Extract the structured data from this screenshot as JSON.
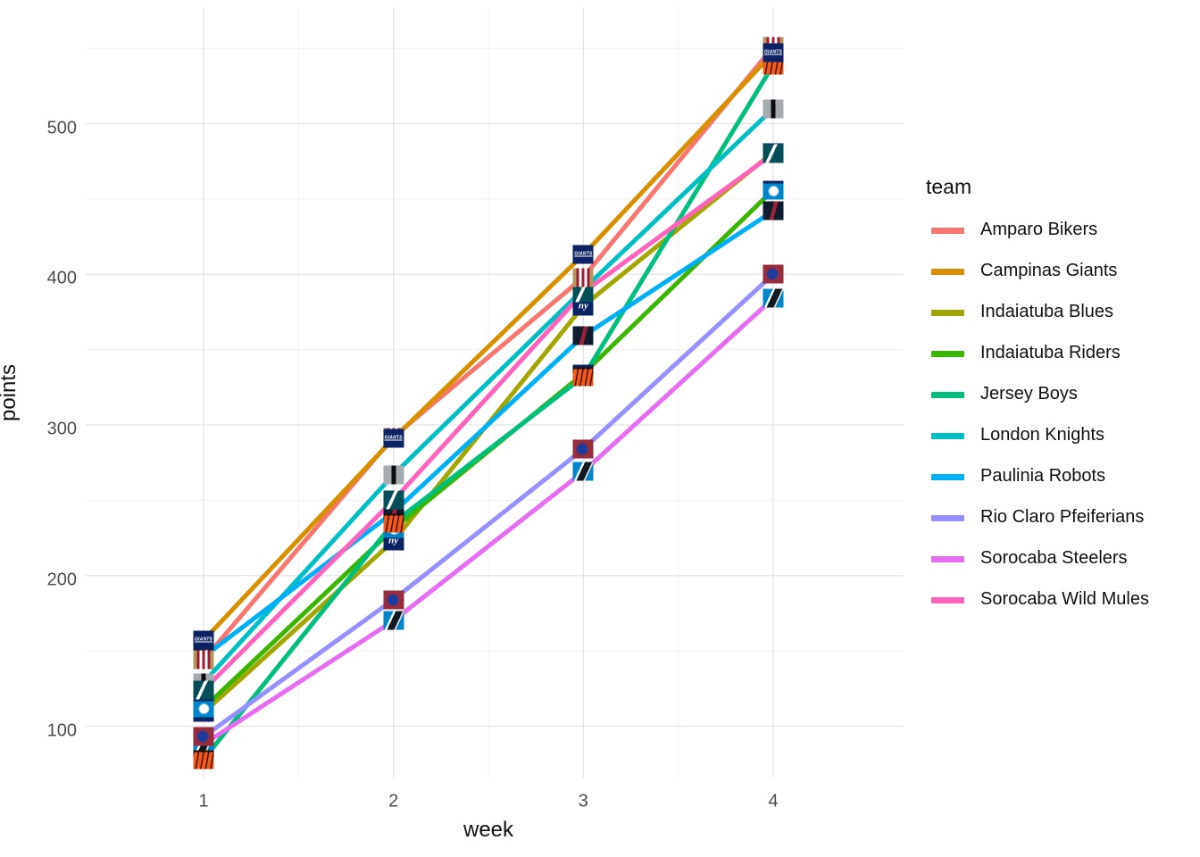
{
  "axes": {
    "x": {
      "title": "week",
      "tick_labels": [
        "1",
        "2",
        "3",
        "4"
      ],
      "tick_values": [
        1,
        2,
        3,
        4
      ],
      "minor_values": [
        1.5,
        2.5,
        3.5
      ]
    },
    "y": {
      "title": "points",
      "tick_labels": [
        "100",
        "200",
        "300",
        "400",
        "500"
      ],
      "tick_values": [
        100,
        200,
        300,
        400,
        500
      ],
      "minor_values": [
        150,
        250,
        350,
        450,
        550
      ]
    }
  },
  "legend": {
    "title": "team",
    "position": "right"
  },
  "grid": {
    "major_color": "#e4e4e4",
    "minor_color": "#f1f1f1",
    "background": "#ffffff"
  },
  "chart_data": {
    "type": "line",
    "title": "",
    "xlabel": "week",
    "ylabel": "points",
    "x": [
      1,
      2,
      3,
      4
    ],
    "xlim": [
      0.85,
      4.15
    ],
    "ylim": [
      66,
      576
    ],
    "grid": "on",
    "legend_position": "right",
    "marker_style": "team logo images at each data point",
    "series": [
      {
        "name": "Amparo Bikers",
        "slug": "amparo-bikers",
        "color": "#F8766D",
        "values": [
          144,
          292,
          398,
          551
        ],
        "logo_text": "",
        "logo_desc": "gold box with red and white vertical stripes"
      },
      {
        "name": "Campinas Giants",
        "slug": "campinas-giants",
        "color": "#D89000",
        "values": [
          157,
          291,
          413,
          547
        ],
        "logo_text": "GIANTS",
        "logo_desc": "navy box with white GIANTS wordmark"
      },
      {
        "name": "Indaiatuba Blues",
        "slug": "indaiatuba-blues",
        "color": "#A3A500",
        "values": [
          109,
          223,
          379,
          481
        ],
        "logo_text": "ny",
        "logo_desc": "navy box with white interlocking ny"
      },
      {
        "name": "Indaiatuba Riders",
        "slug": "indaiatuba-riders",
        "color": "#39B600",
        "values": [
          112,
          231,
          334,
          456
        ],
        "logo_text": "",
        "logo_desc": "bright blue box with white panther head"
      },
      {
        "name": "Jersey Boys",
        "slug": "jersey-boys",
        "color": "#00BF7D",
        "values": [
          78,
          235,
          332,
          539
        ],
        "logo_text": "",
        "logo_desc": "orange box with black tiger stripes"
      },
      {
        "name": "London Knights",
        "slug": "london-knights",
        "color": "#00BFC4",
        "values": [
          129,
          267,
          390,
          510
        ],
        "logo_text": "",
        "logo_desc": "silver box with black vertical stripe"
      },
      {
        "name": "Paulinia Robots",
        "slug": "paulinia-robots",
        "color": "#00B0F6",
        "values": [
          146,
          242,
          359,
          442
        ],
        "logo_text": "",
        "logo_desc": "dark navy box with red diagonal slash"
      },
      {
        "name": "Rio Claro Pfeiferians",
        "slug": "rio-claro-pfeiferians",
        "color": "#9590FF",
        "values": [
          93,
          184,
          284,
          400
        ],
        "logo_text": "",
        "logo_desc": "maroon box with blue football helmet"
      },
      {
        "name": "Sorocaba Steelers",
        "slug": "sorocaba-steelers",
        "color": "#E76BF3",
        "values": [
          88,
          170,
          269,
          384
        ],
        "logo_text": "",
        "logo_desc": "light blue box with black and white diagonal stripes"
      },
      {
        "name": "Sorocaba Wild Mules",
        "slug": "sorocaba-wild-mules",
        "color": "#FF62BC",
        "values": [
          124,
          250,
          388,
          480
        ],
        "logo_text": "",
        "logo_desc": "dark teal box with white eagle swoosh"
      }
    ],
    "logo_draw_order": [
      "paulinia-robots",
      "indaiatuba-blues",
      "indaiatuba-riders",
      "london-knights",
      "sorocaba-steelers",
      "jersey-boys",
      "rio-claro-pfeiferians",
      "sorocaba-wild-mules",
      "amparo-bikers",
      "campinas-giants"
    ]
  }
}
